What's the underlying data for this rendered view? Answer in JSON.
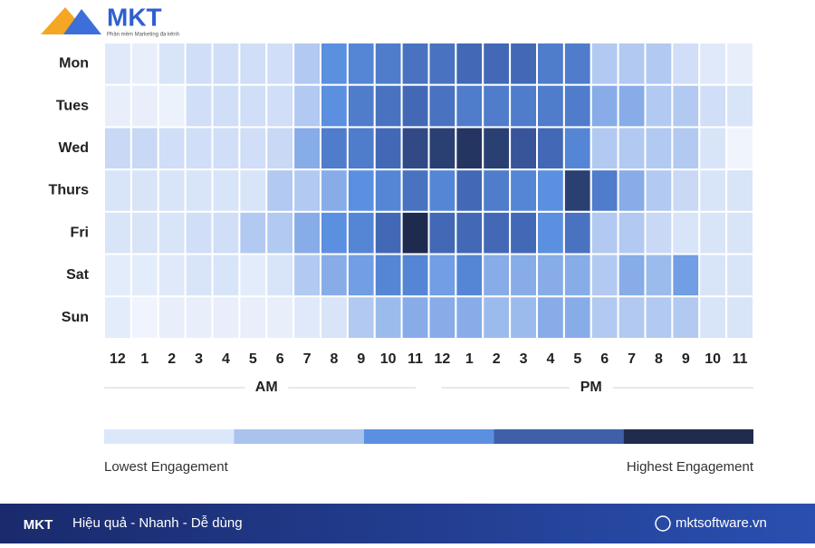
{
  "brand": {
    "name": "MKT",
    "tagline": "Phần mềm Marketing đa kênh"
  },
  "footer": {
    "slogan": "Hiệu quả - Nhanh - Dễ dùng",
    "website": "mktsoftware.vn"
  },
  "chart_data": {
    "type": "heatmap",
    "x_categories": [
      "12",
      "1",
      "2",
      "3",
      "4",
      "5",
      "6",
      "7",
      "8",
      "9",
      "10",
      "11",
      "12",
      "1",
      "2",
      "3",
      "4",
      "5",
      "6",
      "7",
      "8",
      "9",
      "10",
      "11"
    ],
    "x_groups": [
      "AM",
      "PM"
    ],
    "y_categories": [
      "Mon",
      "Tues",
      "Wed",
      "Thurs",
      "Fri",
      "Sat",
      "Sun"
    ],
    "zlim": [
      0,
      10
    ],
    "colorscale": [
      "#f0f5fd",
      "#c8d8f5",
      "#5b8fe0",
      "#3d60ab",
      "#1e2a4e"
    ],
    "legend_colors": [
      "#dbe8fa",
      "#a9c3ee",
      "#5b8fe0",
      "#3f5fa8",
      "#1f2c4d"
    ],
    "legend_labels": [
      "Lowest Engagement",
      "Highest Engagement"
    ],
    "values": [
      [
        1,
        0.5,
        1.5,
        2,
        2,
        2,
        2,
        3,
        5,
        5.5,
        6,
        6.5,
        6.5,
        7,
        7,
        7,
        6,
        6,
        3,
        3,
        3,
        2,
        1,
        0.5
      ],
      [
        0.5,
        0.5,
        0.3,
        2,
        2,
        2,
        2,
        3,
        5,
        6,
        6.5,
        7,
        6.5,
        6,
        6,
        6,
        6,
        6,
        4,
        4,
        3,
        3,
        2,
        1.5
      ],
      [
        2.5,
        2.5,
        2,
        2,
        2,
        2,
        2.5,
        4,
        6,
        6,
        7,
        8.5,
        9,
        9.5,
        9,
        8,
        7,
        5.5,
        3,
        3,
        3,
        3,
        1.5,
        0
      ],
      [
        1.5,
        1.5,
        1.5,
        1.5,
        1.5,
        1.5,
        3,
        3,
        4,
        5,
        5.5,
        6.5,
        5.5,
        7,
        6,
        5.5,
        5,
        9,
        6,
        4,
        3,
        2.5,
        1.5,
        1.5
      ],
      [
        1.5,
        1.5,
        1.5,
        2,
        2,
        3,
        3,
        4,
        5,
        5.5,
        7,
        10,
        7,
        7,
        7,
        7,
        5,
        6.5,
        3,
        3,
        2.5,
        1.5,
        1.5,
        1.5
      ],
      [
        0.8,
        0.8,
        1,
        1.5,
        1.5,
        0.8,
        1.5,
        3,
        4,
        4.5,
        5.5,
        5.5,
        4.5,
        5.5,
        4,
        4,
        4,
        4,
        3,
        4,
        3.5,
        4.5,
        1.5,
        1.5
      ],
      [
        0.8,
        0,
        0.5,
        0.5,
        0.5,
        0.5,
        0.5,
        1,
        1.5,
        3,
        3.5,
        4,
        4,
        4,
        3.5,
        3.5,
        4,
        4,
        3,
        3,
        3,
        3,
        1.5,
        1.5
      ]
    ]
  }
}
